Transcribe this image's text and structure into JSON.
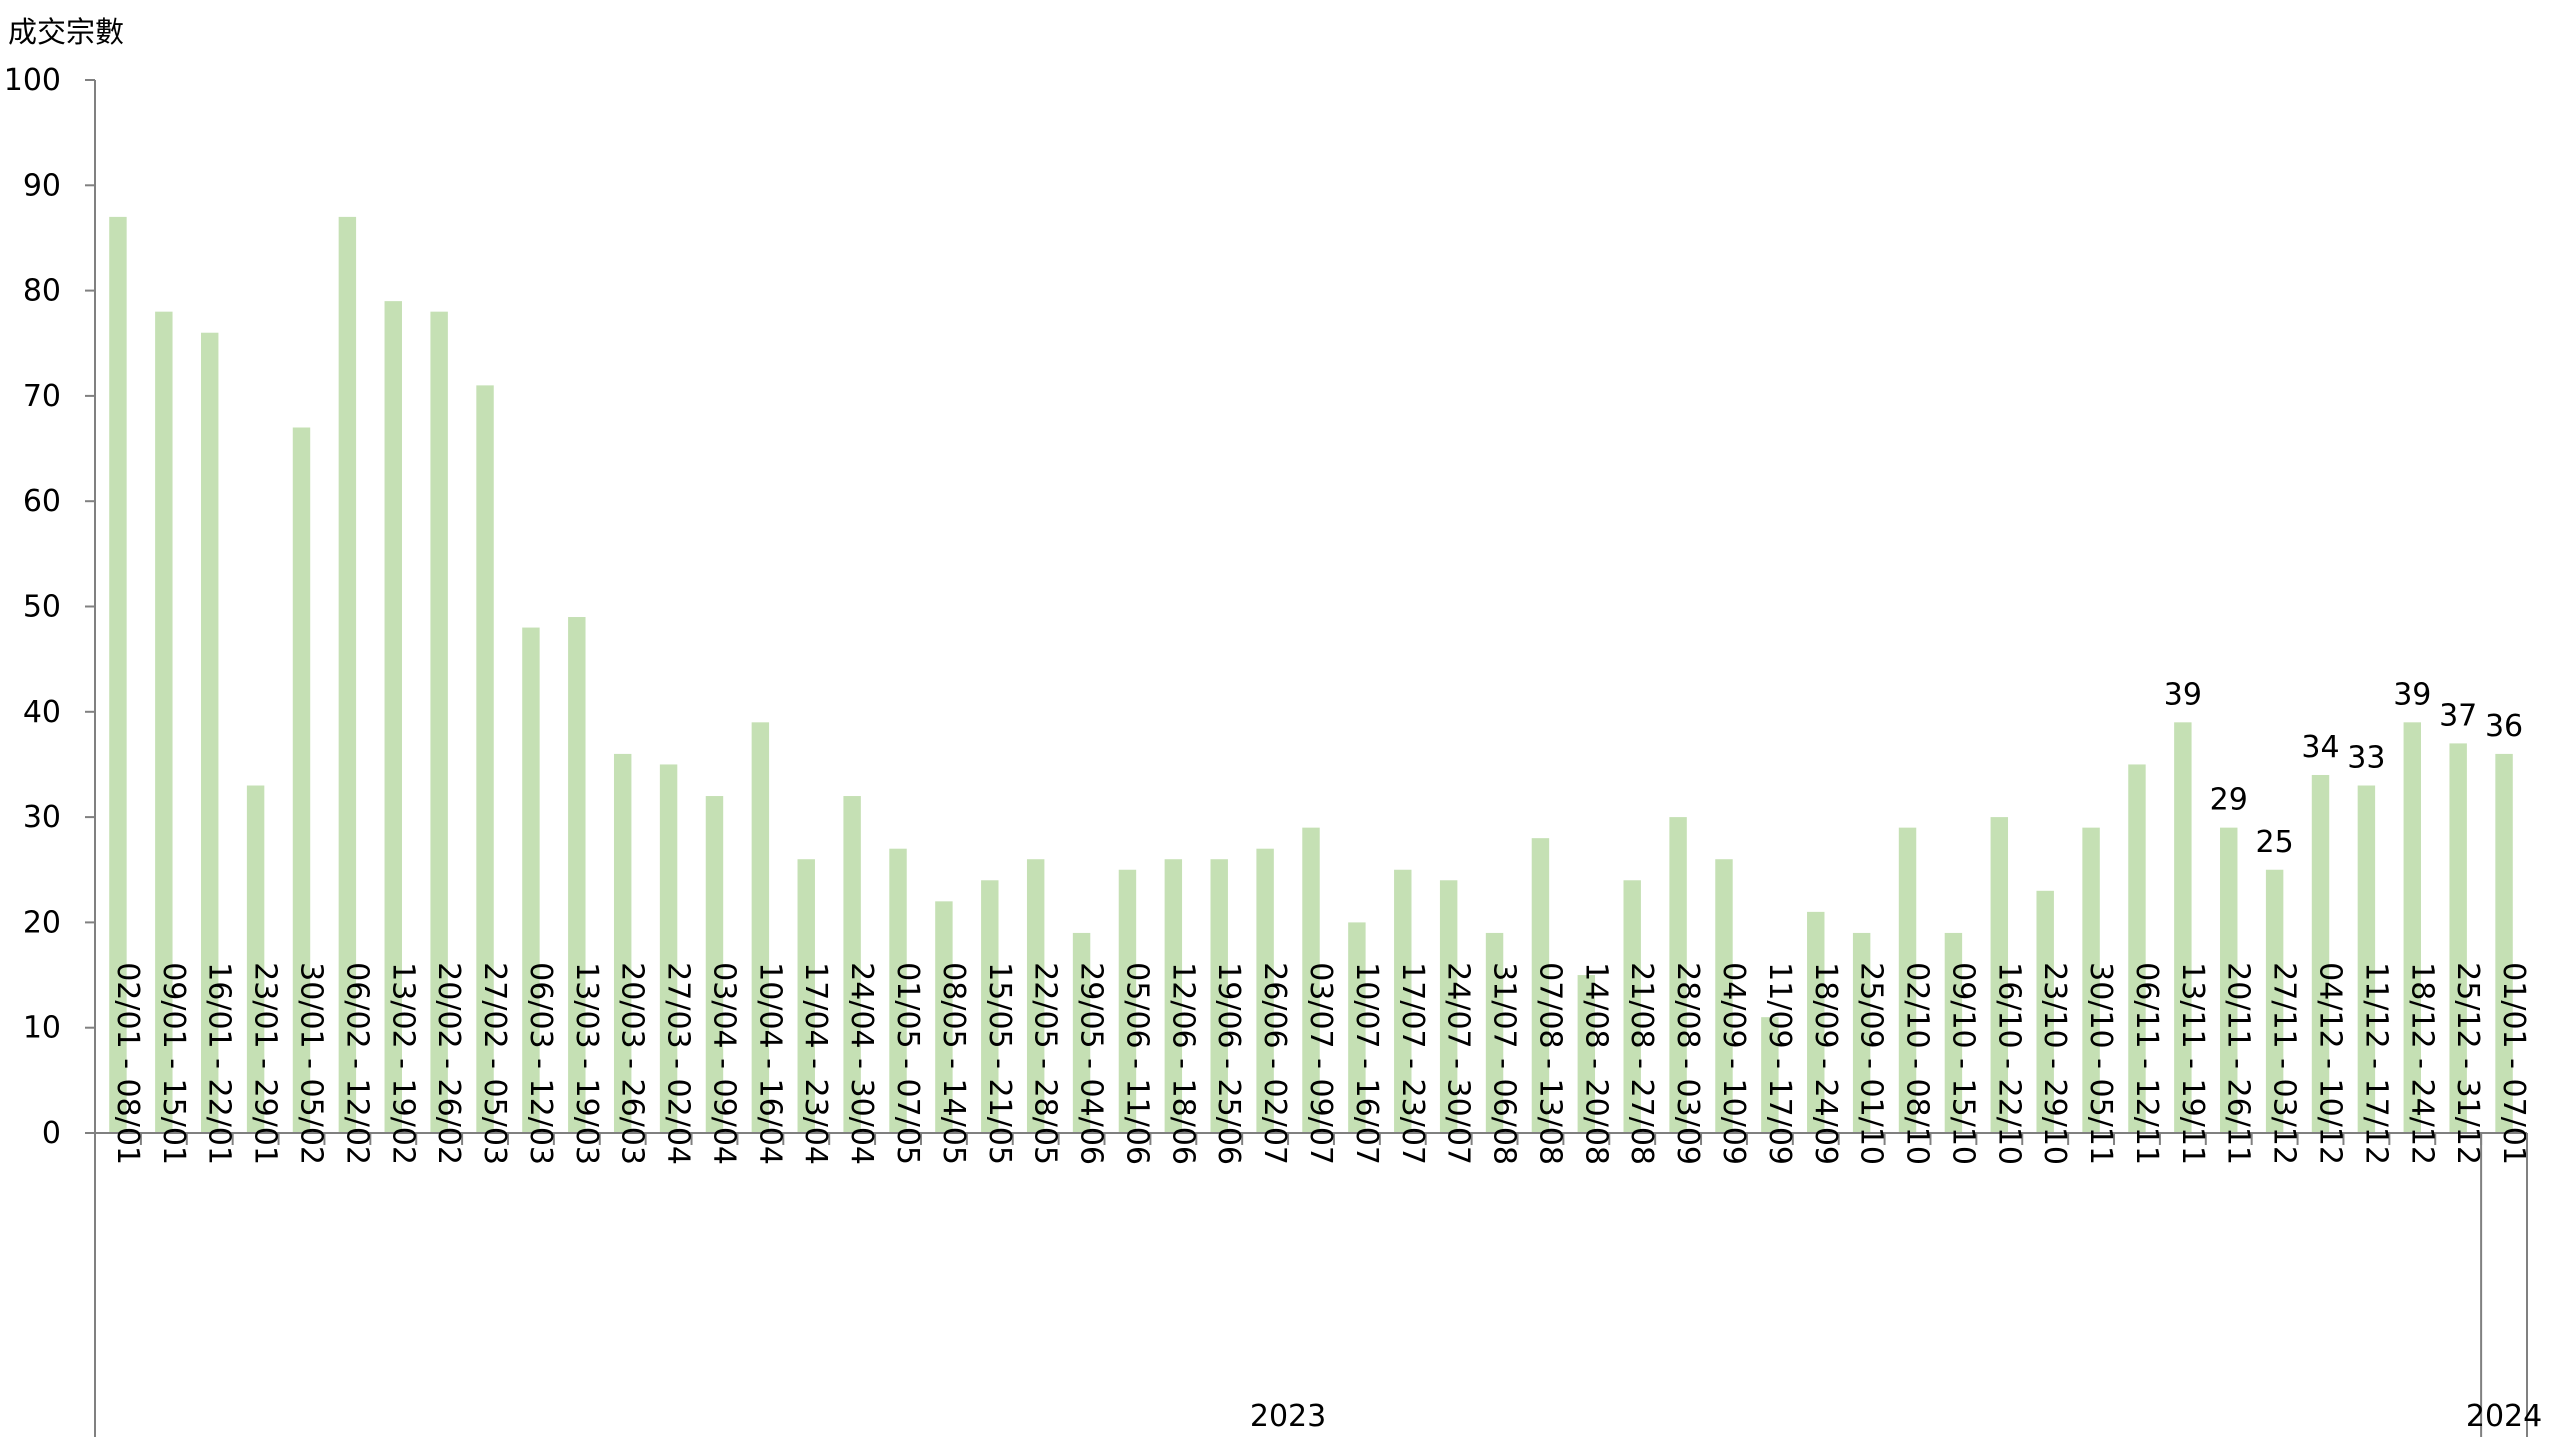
{
  "chart_data": {
    "type": "bar",
    "ylabel": "成交宗數",
    "ylim": [
      0,
      100
    ],
    "yticks": [
      0,
      10,
      20,
      30,
      40,
      50,
      60,
      70,
      80,
      90,
      100
    ],
    "bar_color": "#c5e0b4",
    "categories": [
      "02/01 - 08/01",
      "09/01 - 15/01",
      "16/01 - 22/01",
      "23/01 - 29/01",
      "30/01 - 05/02",
      "06/02 - 12/02",
      "13/02 - 19/02",
      "20/02 - 26/02",
      "27/02 - 05/03",
      "06/03 - 12/03",
      "13/03 - 19/03",
      "20/03 - 26/03",
      "27/03 - 02/04",
      "03/04 - 09/04",
      "10/04 - 16/04",
      "17/04 - 23/04",
      "24/04 - 30/04",
      "01/05 - 07/05",
      "08/05 - 14/05",
      "15/05 - 21/05",
      "22/05 - 28/05",
      "29/05 - 04/06",
      "05/06 - 11/06",
      "12/06 - 18/06",
      "19/06 - 25/06",
      "26/06 - 02/07",
      "03/07 - 09/07",
      "10/07 - 16/07",
      "17/07 - 23/07",
      "24/07 - 30/07",
      "31/07 - 06/08",
      "07/08 - 13/08",
      "14/08 - 20/08",
      "21/08 - 27/08",
      "28/08 - 03/09",
      "04/09 - 10/09",
      "11/09 - 17/09",
      "18/09 - 24/09",
      "25/09 - 01/10",
      "02/10 - 08/10",
      "09/10 - 15/10",
      "16/10 - 22/10",
      "23/10 - 29/10",
      "30/10 - 05/11",
      "06/11 - 12/11",
      "13/11 - 19/11",
      "20/11 - 26/11",
      "27/11 - 03/12",
      "04/12 - 10/12",
      "11/12 - 17/12",
      "18/12 - 24/12",
      "25/12 - 31/12",
      "01/01 - 07/01"
    ],
    "values": [
      87,
      78,
      76,
      33,
      67,
      87,
      79,
      78,
      71,
      48,
      49,
      36,
      35,
      32,
      39,
      26,
      32,
      27,
      22,
      24,
      26,
      19,
      25,
      26,
      26,
      27,
      29,
      20,
      25,
      24,
      19,
      28,
      15,
      24,
      30,
      26,
      11,
      21,
      19,
      29,
      19,
      30,
      23,
      29,
      35,
      39,
      29,
      25,
      34,
      33,
      39,
      37,
      36
    ],
    "data_labels": [
      {
        "index": 45,
        "text": "39"
      },
      {
        "index": 46,
        "text": "29"
      },
      {
        "index": 47,
        "text": "25"
      },
      {
        "index": 48,
        "text": "34"
      },
      {
        "index": 49,
        "text": "33"
      },
      {
        "index": 50,
        "text": "39"
      },
      {
        "index": 51,
        "text": "37"
      },
      {
        "index": 52,
        "text": "36"
      }
    ],
    "year_groups": [
      {
        "label": "2023",
        "start": 0,
        "end": 51
      },
      {
        "label": "2024",
        "start": 52,
        "end": 52
      }
    ],
    "grid": false,
    "legend": "none"
  }
}
